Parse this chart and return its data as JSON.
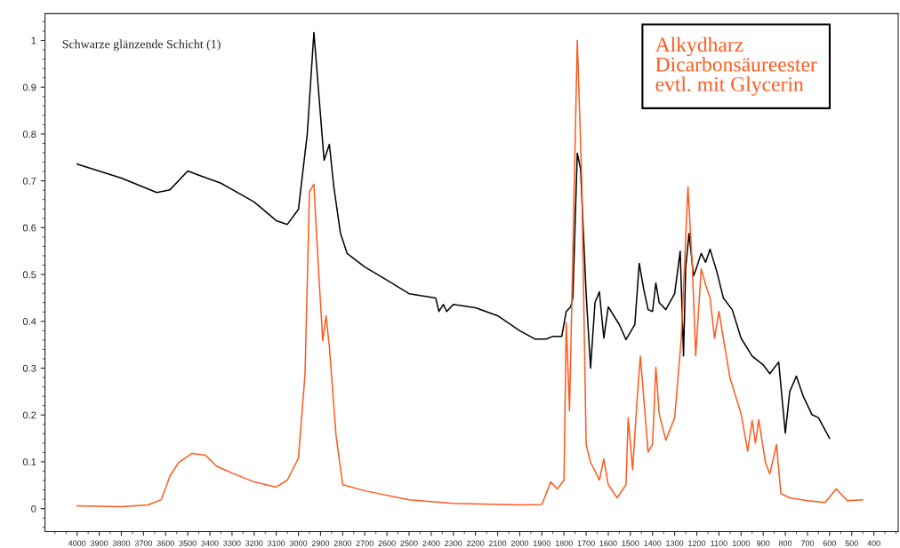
{
  "chart_data": {
    "type": "line",
    "annotations": [
      "Schwarze glänzende Schicht (1)",
      "Alkydharz\nDicarbonsäureester\nevtl. mit Glycerin"
    ],
    "xlim": [
      4145,
      290
    ],
    "ylim": [
      -0.049,
      1.057
    ],
    "xticks": [
      4000,
      3900,
      3800,
      3700,
      3600,
      3500,
      3400,
      3300,
      3200,
      3100,
      3000,
      2900,
      2800,
      2700,
      2600,
      2500,
      2400,
      2300,
      2200,
      2100,
      2000,
      1900,
      1800,
      1700,
      1600,
      1500,
      1400,
      1300,
      1200,
      1100,
      1000,
      900,
      800,
      700,
      600,
      500,
      400
    ],
    "yticks": [
      0,
      0.1,
      0.2,
      0.3,
      0.4,
      0.5,
      0.6,
      0.7,
      0.8,
      0.9,
      1
    ],
    "grid": false,
    "marker": "none",
    "line_style": "solid",
    "series": [
      {
        "color": "#000000",
        "x": [
          4000,
          3800,
          3640,
          3580,
          3500,
          3450,
          3350,
          3200,
          3100,
          3050,
          3000,
          2960,
          2930,
          2900,
          2884,
          2860,
          2840,
          2810,
          2780,
          2700,
          2600,
          2500,
          2380,
          2365,
          2345,
          2330,
          2300,
          2200,
          2100,
          2000,
          1930,
          1880,
          1850,
          1810,
          1790,
          1770,
          1760,
          1740,
          1725,
          1700,
          1680,
          1660,
          1640,
          1620,
          1600,
          1550,
          1520,
          1480,
          1460,
          1440,
          1420,
          1400,
          1385,
          1370,
          1340,
          1300,
          1275,
          1260,
          1250,
          1235,
          1215,
          1200,
          1180,
          1160,
          1140,
          1110,
          1080,
          1040,
          1000,
          950,
          900,
          870,
          830,
          800,
          780,
          750,
          720,
          680,
          650,
          600
        ],
        "values": [
          0.736,
          0.706,
          0.675,
          0.681,
          0.721,
          0.712,
          0.695,
          0.655,
          0.615,
          0.607,
          0.639,
          0.8,
          1.017,
          0.839,
          0.744,
          0.778,
          0.687,
          0.588,
          0.545,
          0.516,
          0.488,
          0.459,
          0.45,
          0.421,
          0.436,
          0.421,
          0.436,
          0.429,
          0.412,
          0.38,
          0.362,
          0.362,
          0.368,
          0.368,
          0.421,
          0.431,
          0.45,
          0.759,
          0.725,
          0.459,
          0.3,
          0.44,
          0.463,
          0.364,
          0.431,
          0.393,
          0.361,
          0.393,
          0.524,
          0.469,
          0.425,
          0.421,
          0.482,
          0.44,
          0.425,
          0.459,
          0.55,
          0.326,
          0.516,
          0.588,
          0.497,
          0.516,
          0.545,
          0.526,
          0.554,
          0.507,
          0.45,
          0.425,
          0.364,
          0.326,
          0.307,
          0.288,
          0.313,
          0.161,
          0.25,
          0.283,
          0.241,
          0.201,
          0.194,
          0.15
        ]
      },
      {
        "color": "#ff5a1e",
        "x": [
          4000,
          3800,
          3680,
          3620,
          3580,
          3540,
          3480,
          3420,
          3370,
          3300,
          3200,
          3100,
          3050,
          3000,
          2970,
          2950,
          2930,
          2910,
          2890,
          2875,
          2860,
          2830,
          2800,
          2700,
          2500,
          2300,
          2000,
          1900,
          1860,
          1830,
          1800,
          1790,
          1775,
          1740,
          1720,
          1700,
          1680,
          1640,
          1620,
          1600,
          1560,
          1520,
          1510,
          1490,
          1470,
          1455,
          1420,
          1400,
          1385,
          1370,
          1340,
          1300,
          1270,
          1240,
          1220,
          1205,
          1180,
          1160,
          1140,
          1120,
          1100,
          1080,
          1050,
          1000,
          970,
          950,
          935,
          920,
          890,
          870,
          840,
          820,
          780,
          700,
          620,
          570,
          520,
          450
        ],
        "values": [
          0.006,
          0.004,
          0.008,
          0.019,
          0.07,
          0.099,
          0.118,
          0.114,
          0.091,
          0.076,
          0.057,
          0.046,
          0.061,
          0.108,
          0.288,
          0.677,
          0.693,
          0.516,
          0.359,
          0.412,
          0.345,
          0.156,
          0.051,
          0.038,
          0.019,
          0.011,
          0.008,
          0.009,
          0.057,
          0.042,
          0.061,
          0.397,
          0.209,
          1.0,
          0.706,
          0.137,
          0.099,
          0.061,
          0.106,
          0.051,
          0.023,
          0.051,
          0.194,
          0.083,
          0.231,
          0.326,
          0.121,
          0.137,
          0.302,
          0.203,
          0.146,
          0.194,
          0.364,
          0.687,
          0.516,
          0.326,
          0.512,
          0.478,
          0.45,
          0.364,
          0.421,
          0.364,
          0.279,
          0.203,
          0.123,
          0.188,
          0.14,
          0.19,
          0.099,
          0.074,
          0.137,
          0.032,
          0.023,
          0.017,
          0.013,
          0.042,
          0.017,
          0.019
        ]
      }
    ]
  }
}
